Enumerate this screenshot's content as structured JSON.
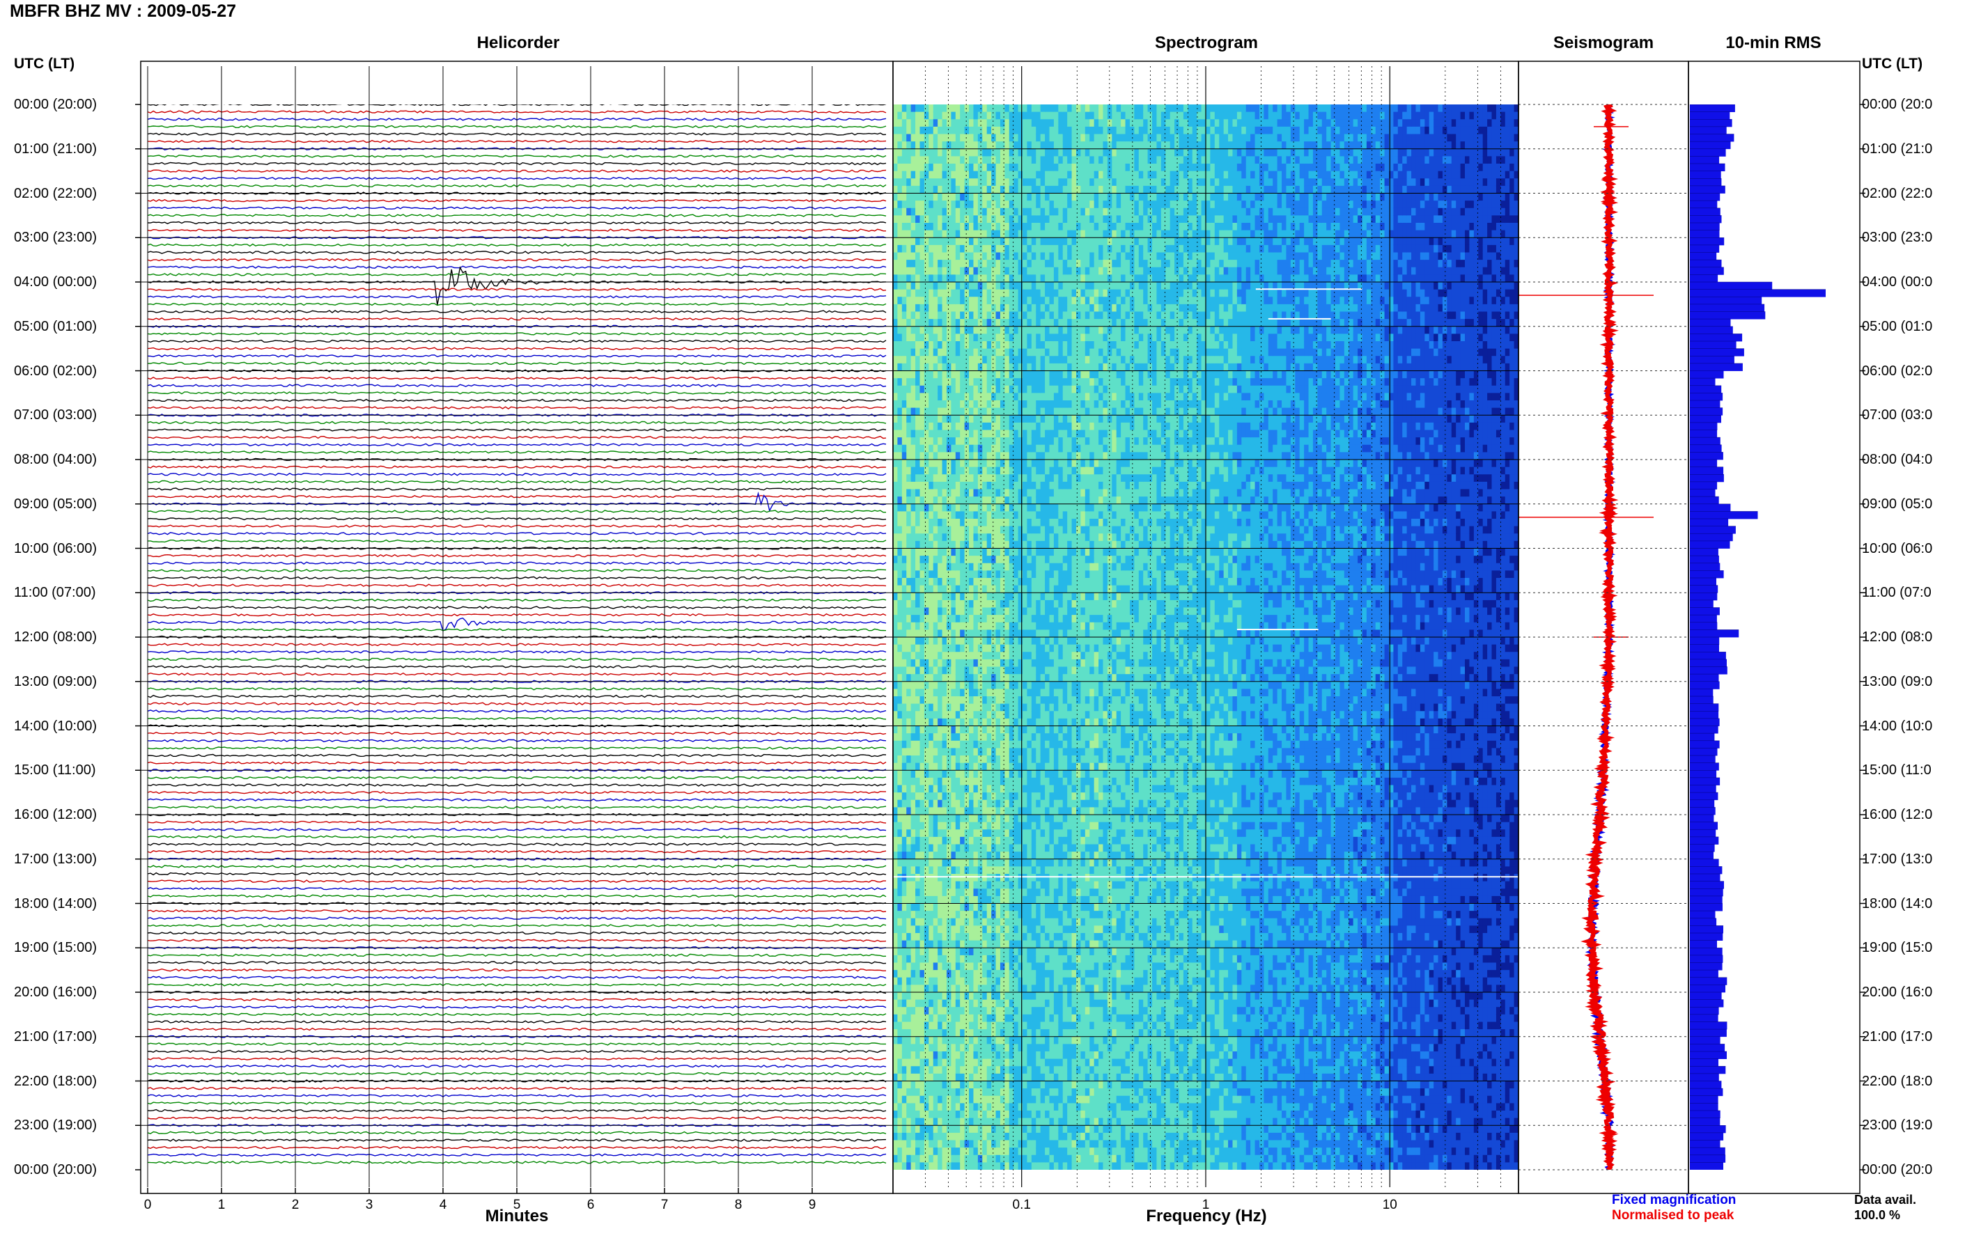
{
  "header": {
    "title": "MBFR BHZ MV : 2009-05-27",
    "helicorder_title": "Helicorder",
    "spectrogram_title": "Spectrogram",
    "seismogram_title": "Seismogram",
    "rms_title": "10-min RMS",
    "utc_label_left": "UTC (LT)",
    "utc_label_right": "UTC (LT)"
  },
  "time_labels": [
    "00:00 (20:00)",
    "01:00 (21:00)",
    "02:00 (22:00)",
    "03:00 (23:00)",
    "04:00 (00:00)",
    "05:00 (01:00)",
    "06:00 (02:00)",
    "07:00 (03:00)",
    "08:00 (04:00)",
    "09:00 (05:00)",
    "10:00 (06:00)",
    "11:00 (07:00)",
    "12:00 (08:00)",
    "13:00 (09:00)",
    "14:00 (10:00)",
    "15:00 (11:00)",
    "16:00 (12:00)",
    "17:00 (13:00)",
    "18:00 (14:00)",
    "19:00 (15:00)",
    "20:00 (16:00)",
    "21:00 (17:00)",
    "22:00 (18:00)",
    "23:00 (19:00)",
    "00:00 (20:00)"
  ],
  "time_labels_right": [
    "00:00 (20:0",
    "01:00 (21:0",
    "02:00 (22:0",
    "03:00 (23:0",
    "04:00 (00:0",
    "05:00 (01:0",
    "06:00 (02:0",
    "07:00 (03:0",
    "08:00 (04:0",
    "09:00 (05:0",
    "10:00 (06:0",
    "11:00 (07:0",
    "12:00 (08:0",
    "13:00 (09:0",
    "14:00 (10:0",
    "15:00 (11:0",
    "16:00 (12:0",
    "17:00 (13:0",
    "18:00 (14:0",
    "19:00 (15:0",
    "20:00 (16:0",
    "21:00 (17:0",
    "22:00 (18:0",
    "23:00 (19:0",
    "00:00 (20:0"
  ],
  "chart_data": [
    {
      "type": "line",
      "panel": "helicorder",
      "title": "Helicorder",
      "xlabel": "Minutes",
      "ylabel": "UTC (LT)",
      "x_ticks": [
        "0",
        "1",
        "2",
        "3",
        "4",
        "5",
        "6",
        "7",
        "8",
        "9"
      ],
      "xlim": [
        0,
        10
      ],
      "lines_per_hour": 6,
      "trace_colors": [
        "#000000",
        "#cc0000",
        "#0000cc",
        "#008800"
      ],
      "events": [
        {
          "hour": 4.0,
          "minute": 3.9,
          "amplitude": 1.0,
          "duration_min": 1.4
        },
        {
          "hour": 9.0,
          "minute": 8.25,
          "amplitude": 0.7,
          "duration_min": 0.5
        },
        {
          "hour": 11.8,
          "minute": 4.0,
          "amplitude": 0.35,
          "duration_min": 1.0
        }
      ]
    },
    {
      "type": "heatmap",
      "panel": "spectrogram",
      "title": "Spectrogram",
      "xlabel": "Frequency (Hz)",
      "x_scale": "log",
      "x_ticks": [
        "0.1",
        "1",
        "10"
      ],
      "xlim": [
        0.02,
        50
      ],
      "colormap": [
        "#0a1f9a",
        "#1449d6",
        "#1e7ff0",
        "#26b8e8",
        "#5ee0c8",
        "#a8f09a"
      ]
    },
    {
      "type": "line",
      "panel": "seismogram",
      "title": "Seismogram",
      "series": [
        {
          "name": "Fixed magnification",
          "color": "#0000ee"
        },
        {
          "name": "Normalised to peak",
          "color": "#ee0000"
        }
      ],
      "drift_by_hour": [
        0,
        0,
        0,
        0,
        0,
        0,
        0,
        0,
        0,
        0,
        0,
        0,
        0,
        -0.05,
        -0.12,
        -0.2,
        -0.3,
        -0.45,
        -0.55,
        -0.6,
        -0.5,
        -0.3,
        -0.15,
        0,
        0
      ],
      "spikes_hour": [
        0.5,
        4.3,
        9.3,
        12.0
      ]
    },
    {
      "type": "bar",
      "panel": "rms",
      "title": "10-min RMS",
      "orientation": "horizontal",
      "hourly_rms": [
        0.3,
        0.25,
        0.22,
        0.22,
        0.6,
        0.35,
        0.22,
        0.22,
        0.22,
        0.3,
        0.22,
        0.2,
        0.25,
        0.2,
        0.2,
        0.2,
        0.2,
        0.22,
        0.22,
        0.24,
        0.24,
        0.24,
        0.22,
        0.24
      ],
      "peaks": [
        {
          "hour": 4.16,
          "value": 1.0
        },
        {
          "hour": 4.83,
          "value": 0.3
        },
        {
          "hour": 9.16,
          "value": 0.5
        },
        {
          "hour": 11.83,
          "value": 0.36
        }
      ]
    }
  ],
  "footer": {
    "legend_fixed": "Fixed magnification",
    "legend_normalised": "Normalised to peak",
    "data_avail_label": "Data avail.",
    "data_avail_value": "100.0 %"
  }
}
